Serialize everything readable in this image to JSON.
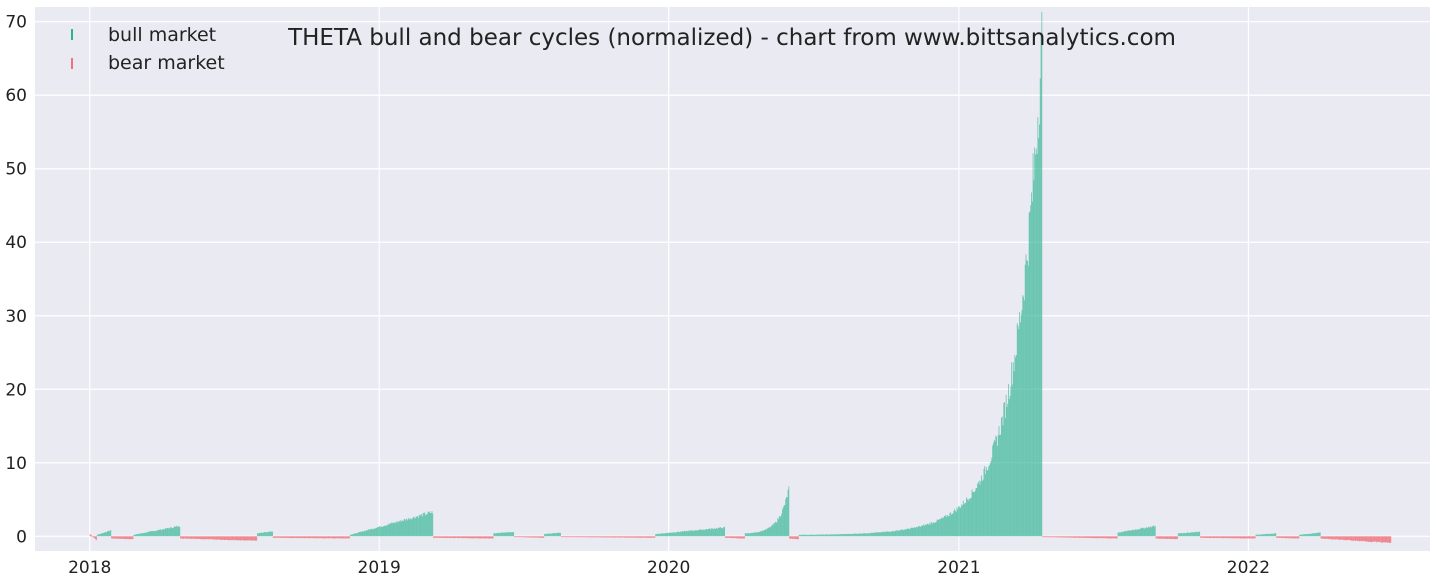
{
  "chart_data": {
    "type": "bar",
    "title": "THETA bull and bear cycles (normalized)  - chart from www.bittsanalytics.com",
    "xlabel": "",
    "ylabel": "",
    "xlim": [
      "2017-10-24",
      "2022-08-18"
    ],
    "ylim": [
      -2,
      72
    ],
    "grid": true,
    "legend_position": "top-left",
    "y_ticks": [
      0,
      10,
      20,
      30,
      40,
      50,
      60,
      70
    ],
    "x_ticks": [
      {
        "date": "2018-01-01",
        "label": "2018"
      },
      {
        "date": "2019-01-01",
        "label": "2019"
      },
      {
        "date": "2020-01-01",
        "label": "2020"
      },
      {
        "date": "2021-01-01",
        "label": "2021"
      },
      {
        "date": "2022-01-01",
        "label": "2022"
      }
    ],
    "series": [
      {
        "name": "bull market",
        "color": "#2ab38f"
      },
      {
        "name": "bear market",
        "color": "#f0737b"
      }
    ],
    "segments": [
      {
        "start": "2018-01-01",
        "end": "2018-01-10",
        "market": "bear",
        "from": 0.3,
        "to": -0.5
      },
      {
        "start": "2018-01-10",
        "end": "2018-01-28",
        "market": "bull",
        "from": 0.2,
        "to": 0.8
      },
      {
        "start": "2018-01-28",
        "end": "2018-02-25",
        "market": "bear",
        "from": -0.3,
        "to": -0.4
      },
      {
        "start": "2018-02-25",
        "end": "2018-04-25",
        "market": "bull",
        "from": 0.2,
        "to": 1.4
      },
      {
        "start": "2018-04-25",
        "end": "2018-07-31",
        "market": "bear",
        "from": -0.3,
        "to": -0.6
      },
      {
        "start": "2018-07-31",
        "end": "2018-08-20",
        "market": "bull",
        "from": 0.4,
        "to": 0.7
      },
      {
        "start": "2018-08-20",
        "end": "2018-11-25",
        "market": "bear",
        "from": -0.2,
        "to": -0.3
      },
      {
        "start": "2018-11-25",
        "end": "2019-03-10",
        "market": "bull",
        "from": 0.2,
        "to": 3.3
      },
      {
        "start": "2019-03-10",
        "end": "2019-05-25",
        "market": "bear",
        "from": -0.2,
        "to": -0.3
      },
      {
        "start": "2019-05-25",
        "end": "2019-06-20",
        "market": "bull",
        "from": 0.4,
        "to": 0.6
      },
      {
        "start": "2019-06-20",
        "end": "2019-07-28",
        "market": "bear",
        "from": -0.1,
        "to": -0.2
      },
      {
        "start": "2019-07-28",
        "end": "2019-08-18",
        "market": "bull",
        "from": 0.3,
        "to": 0.5
      },
      {
        "start": "2019-08-18",
        "end": "2019-12-15",
        "market": "bear",
        "from": -0.1,
        "to": -0.2
      },
      {
        "start": "2019-12-15",
        "end": "2020-03-12",
        "market": "bull",
        "from": 0.3,
        "to": 1.2
      },
      {
        "start": "2020-03-12",
        "end": "2020-04-06",
        "market": "bear",
        "from": -0.2,
        "to": -0.3
      },
      {
        "start": "2020-04-06",
        "end": "2020-06-01",
        "market": "bull",
        "from": 0.4,
        "to": 6.5
      },
      {
        "start": "2020-06-01",
        "end": "2020-06-13",
        "market": "bear",
        "from": -0.3,
        "to": -0.4
      },
      {
        "start": "2020-06-13",
        "end": "2021-04-16",
        "market": "bull",
        "from": 0.2,
        "to": 67.0
      },
      {
        "start": "2021-04-16",
        "end": "2021-07-20",
        "market": "bear",
        "from": -0.1,
        "to": -0.3
      },
      {
        "start": "2021-07-20",
        "end": "2021-09-06",
        "market": "bull",
        "from": 0.5,
        "to": 1.4
      },
      {
        "start": "2021-09-06",
        "end": "2021-10-04",
        "market": "bear",
        "from": -0.3,
        "to": -0.4
      },
      {
        "start": "2021-10-04",
        "end": "2021-11-01",
        "market": "bull",
        "from": 0.4,
        "to": 0.6
      },
      {
        "start": "2021-11-01",
        "end": "2022-01-10",
        "market": "bear",
        "from": -0.2,
        "to": -0.3
      },
      {
        "start": "2022-01-10",
        "end": "2022-02-05",
        "market": "bull",
        "from": 0.2,
        "to": 0.4
      },
      {
        "start": "2022-02-05",
        "end": "2022-03-06",
        "market": "bear",
        "from": -0.2,
        "to": -0.3
      },
      {
        "start": "2022-03-06",
        "end": "2022-04-02",
        "market": "bull",
        "from": 0.2,
        "to": 0.5
      },
      {
        "start": "2022-04-02",
        "end": "2022-06-30",
        "market": "bear",
        "from": -0.3,
        "to": -0.9
      }
    ]
  }
}
